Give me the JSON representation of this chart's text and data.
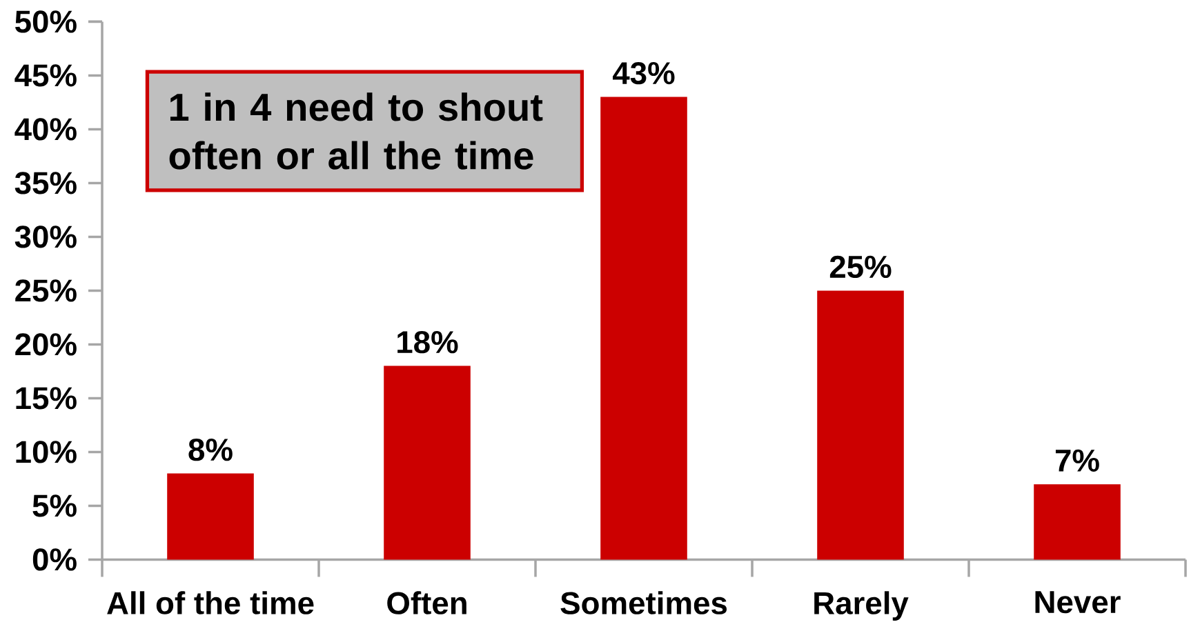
{
  "chart_data": {
    "type": "bar",
    "categories": [
      "All of the time",
      "Often",
      "Sometimes",
      "Rarely",
      "Never"
    ],
    "values": [
      8,
      18,
      43,
      25,
      7
    ],
    "value_labels": [
      "8%",
      "18%",
      "43%",
      "25%",
      "7%"
    ],
    "color": "#cc0000",
    "ylim": [
      0,
      50
    ],
    "yticks": [
      {
        "value": 0,
        "label": "0%"
      },
      {
        "value": 5,
        "label": "5%"
      },
      {
        "value": 10,
        "label": "10%"
      },
      {
        "value": 15,
        "label": "15%"
      },
      {
        "value": 20,
        "label": "20%"
      },
      {
        "value": 25,
        "label": "25%"
      },
      {
        "value": 30,
        "label": "30%"
      },
      {
        "value": 35,
        "label": "35%"
      },
      {
        "value": 40,
        "label": "40%"
      },
      {
        "value": 45,
        "label": "45%"
      },
      {
        "value": 50,
        "label": "50%"
      }
    ],
    "annotations": [
      "1 in 4 need to shout often or all the time"
    ],
    "grid": false
  }
}
